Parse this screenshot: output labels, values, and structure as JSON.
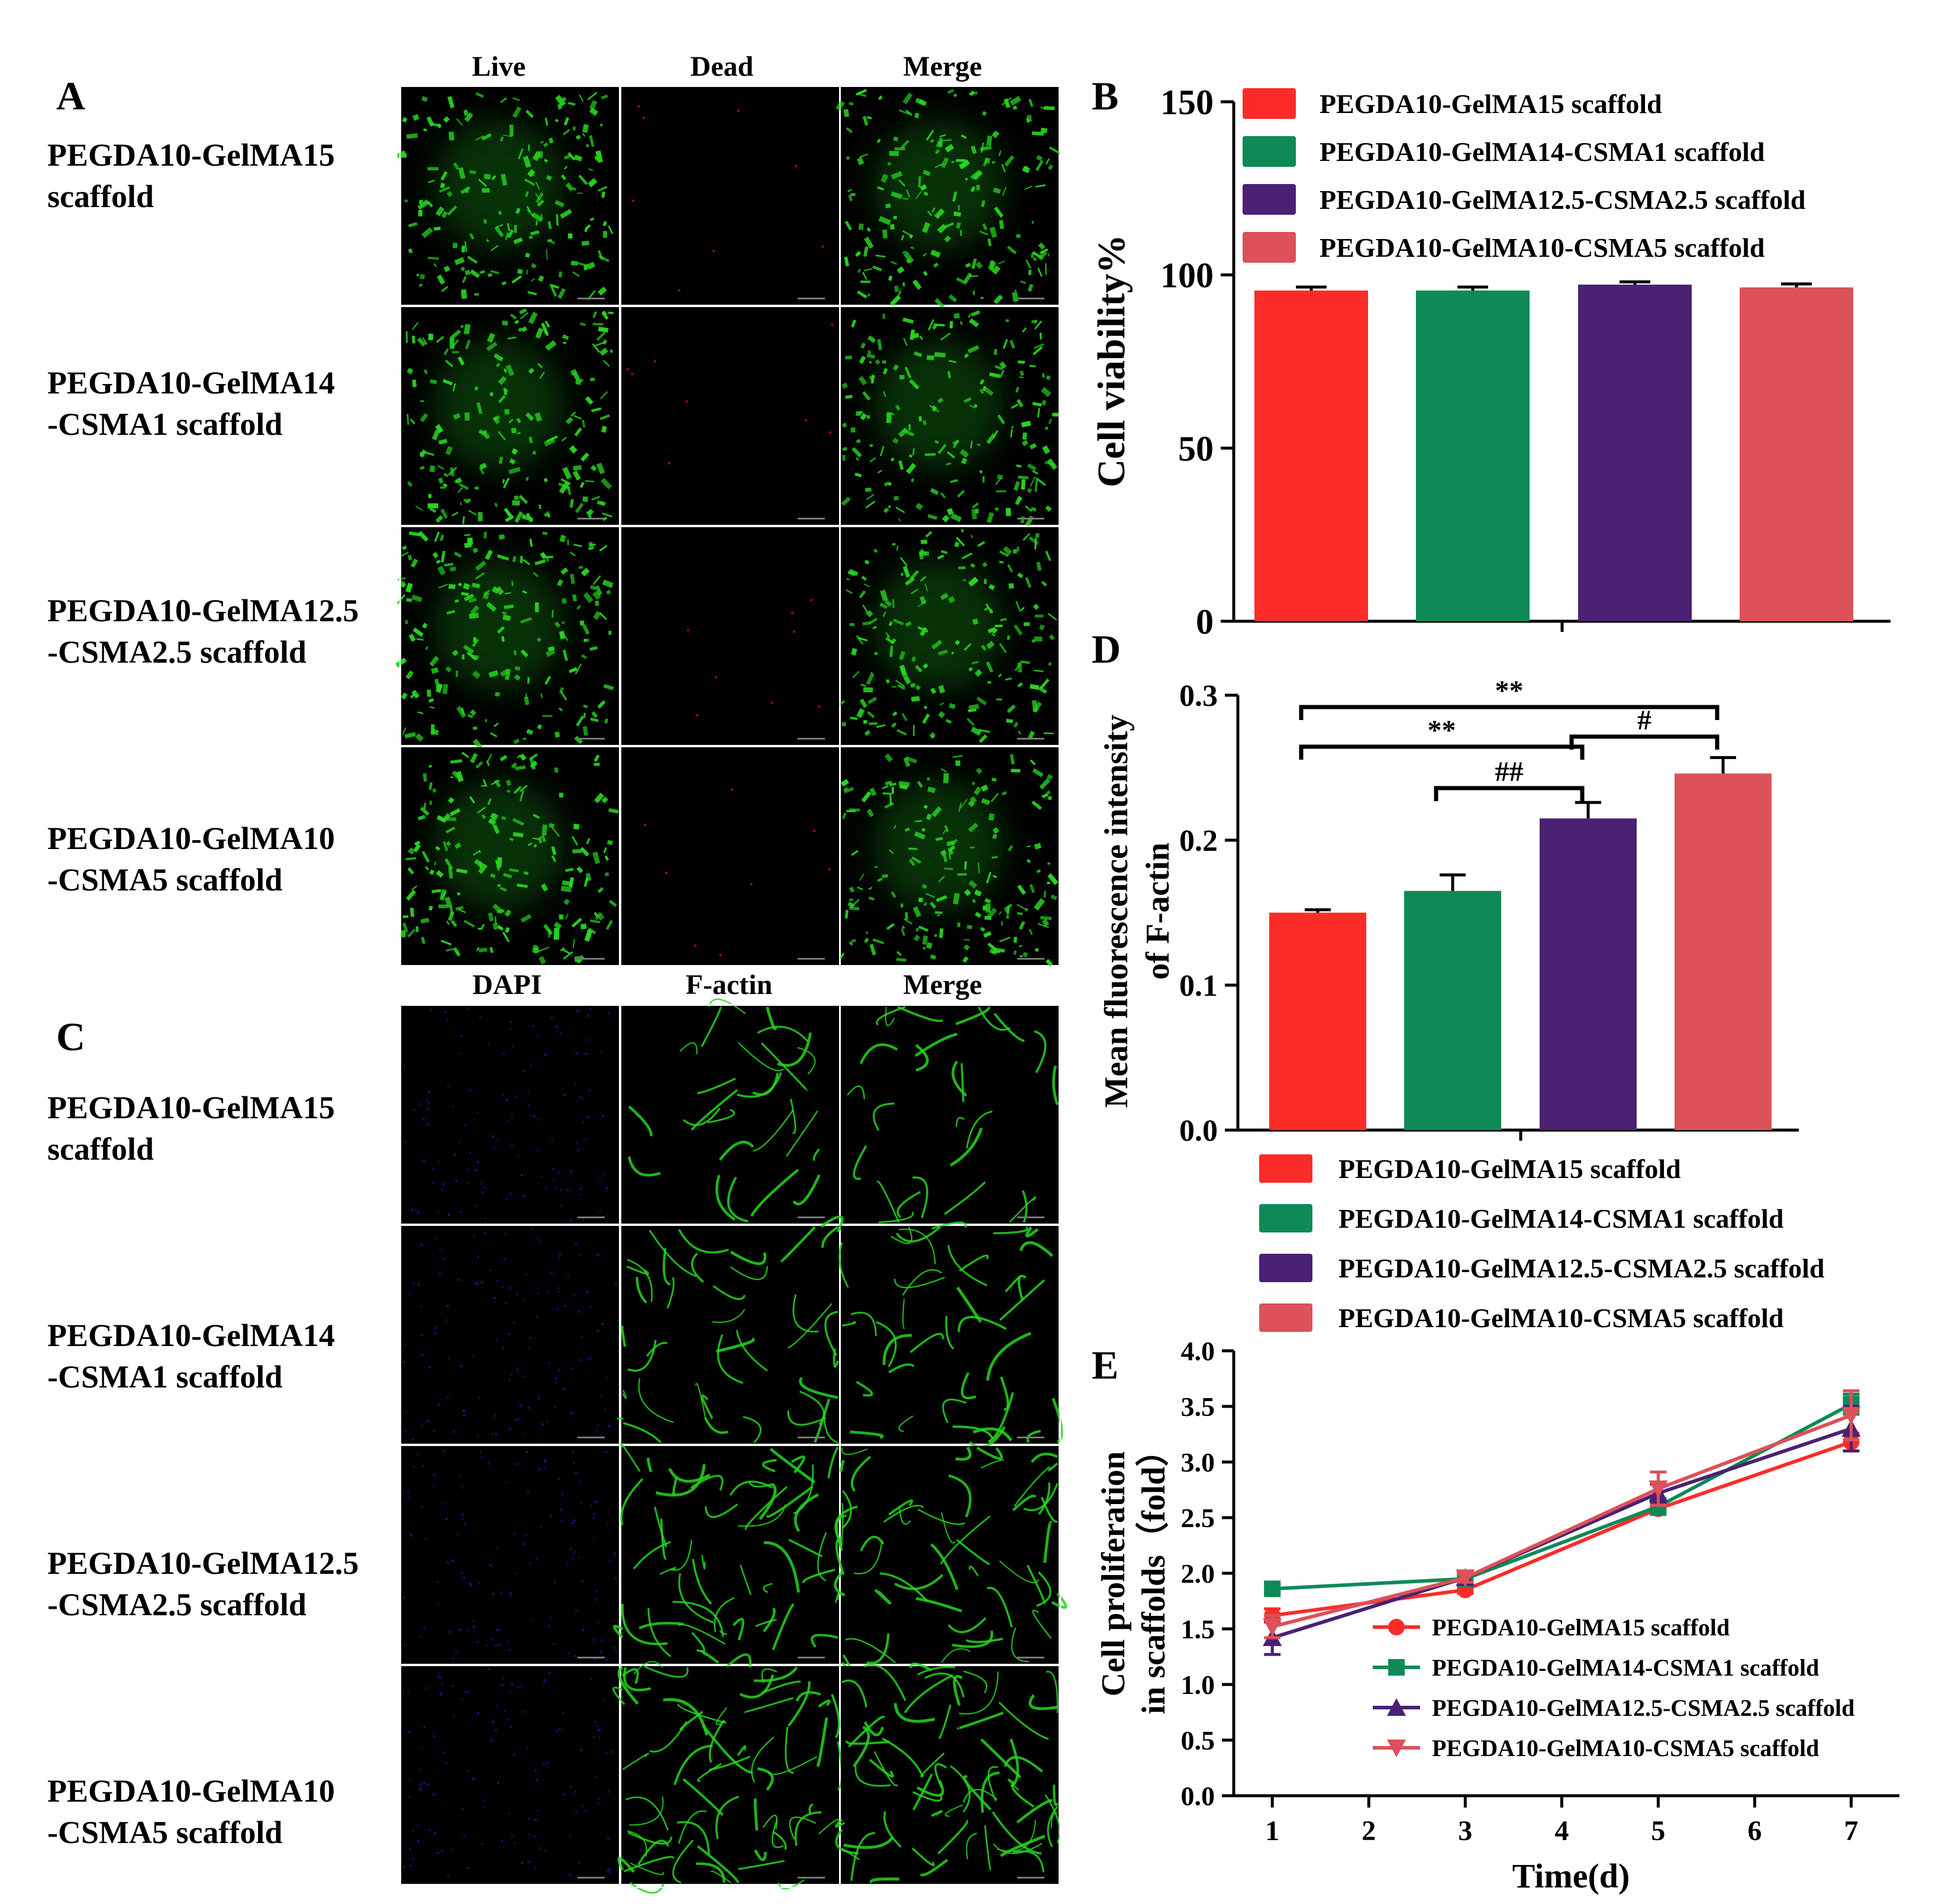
{
  "panel_letters": {
    "A": "A",
    "B": "B",
    "C": "C",
    "D": "D",
    "E": "E"
  },
  "colors": {
    "s15": "#fb2c28",
    "s14": "#0d8a56",
    "s12": "#4a2173",
    "s10": "#dc515a",
    "micro_bg": "#000000",
    "green_channel": "#26d61e",
    "red_channel": "#d01010",
    "blue_channel": "#1a1a9a"
  },
  "panel_a": {
    "columns": [
      "Live",
      "Dead",
      "Merge"
    ],
    "rows": [
      [
        "PEGDA10-GelMA15",
        "scaffold"
      ],
      [
        "PEGDA10-GelMA14",
        "-CSMA1 scaffold"
      ],
      [
        "PEGDA10-GelMA12.5",
        "-CSMA2.5 scaffold"
      ],
      [
        "PEGDA10-GelMA10",
        "-CSMA5 scaffold"
      ]
    ],
    "channel_colors": [
      "green",
      "red",
      "green"
    ]
  },
  "panel_c": {
    "columns": [
      "DAPI",
      "F-actin",
      "Merge"
    ],
    "rows": [
      [
        "PEGDA10-GelMA15",
        "scaffold"
      ],
      [
        "PEGDA10-GelMA14",
        "-CSMA1 scaffold"
      ],
      [
        "PEGDA10-GelMA12.5",
        "-CSMA2.5 scaffold"
      ],
      [
        "PEGDA10-GelMA10",
        "-CSMA5 scaffold"
      ]
    ],
    "channel_colors": [
      "blue",
      "green",
      "green"
    ]
  },
  "chart_data": [
    {
      "panel": "B",
      "type": "bar",
      "ylabel": "Cell viability%",
      "xlabel": "",
      "ylim": [
        0,
        150
      ],
      "yticks": [
        "0",
        "50",
        "100",
        "150"
      ],
      "categories": [
        "PEGDA10-GelMA15 scaffold",
        "PEGDA10-GelMA14-CSMA1 scaffold",
        "PEGDA10-GelMA12.5-CSMA2.5 scaffold",
        "PEGDA10-GelMA10-CSMA5 scaffold"
      ],
      "values": [
        95.5,
        95.5,
        97.2,
        96.4
      ],
      "errors": [
        1.0,
        1.0,
        0.8,
        1.0
      ],
      "legend": [
        "PEGDA10-GelMA15 scaffold",
        "PEGDA10-GelMA14-CSMA1 scaffold",
        "PEGDA10-GelMA12.5-CSMA2.5 scaffold",
        "PEGDA10-GelMA10-CSMA5 scaffold"
      ],
      "legend_position": "top"
    },
    {
      "panel": "D",
      "type": "bar",
      "ylabel": [
        "Mean fluorescence intensity",
        "of F-actin"
      ],
      "xlabel": "",
      "ylim": [
        0,
        0.3
      ],
      "yticks": [
        "0.0",
        "0.1",
        "0.2",
        "0.3"
      ],
      "categories": [
        "PEGDA10-GelMA15 scaffold",
        "PEGDA10-GelMA14-CSMA1 scaffold",
        "PEGDA10-GelMA12.5-CSMA2.5 scaffold",
        "PEGDA10-GelMA10-CSMA5 scaffold"
      ],
      "values": [
        0.15,
        0.165,
        0.215,
        0.246
      ],
      "errors": [
        0.002,
        0.011,
        0.011,
        0.011
      ],
      "significance": [
        {
          "from": 0,
          "to": 3,
          "label": "**"
        },
        {
          "from": 0,
          "to": 2,
          "label": "**"
        },
        {
          "from": 2,
          "to": 3,
          "label": "#"
        },
        {
          "from": 1,
          "to": 2,
          "label": "##"
        }
      ],
      "legend": [
        "PEGDA10-GelMA15 scaffold",
        "PEGDA10-GelMA14-CSMA1 scaffold",
        "PEGDA10-GelMA12.5-CSMA2.5 scaffold",
        "PEGDA10-GelMA10-CSMA5 scaffold"
      ],
      "legend_position": "bottom"
    },
    {
      "panel": "E",
      "type": "line",
      "xlabel": "Time(d)",
      "ylabel": [
        "Cell proliferation",
        "in scaffolds（fold）"
      ],
      "xlim": [
        0.6,
        7.5
      ],
      "ylim": [
        0,
        4.0
      ],
      "xticks": [
        "1",
        "2",
        "3",
        "4",
        "5",
        "6",
        "7"
      ],
      "yticks": [
        "0.0",
        "0.5",
        "1.0",
        "1.5",
        "2.0",
        "2.5",
        "3.0",
        "3.5",
        "4.0"
      ],
      "x": [
        1,
        3,
        5,
        7
      ],
      "series": [
        {
          "name": "PEGDA10-GelMA15 scaffold",
          "marker": "circle",
          "values": [
            1.62,
            1.85,
            2.58,
            3.18
          ],
          "errors": [
            0.06,
            0.03,
            0.05,
            0.08
          ]
        },
        {
          "name": "PEGDA10-GelMA14-CSMA1 scaffold",
          "marker": "square",
          "values": [
            1.86,
            1.95,
            2.6,
            3.52
          ],
          "errors": [
            0.04,
            0.04,
            0.07,
            0.09
          ]
        },
        {
          "name": "PEGDA10-GelMA12.5-CSMA2.5 scaffold",
          "marker": "triangle-up",
          "values": [
            1.42,
            1.96,
            2.72,
            3.3
          ],
          "errors": [
            0.15,
            0.04,
            0.08,
            0.2
          ]
        },
        {
          "name": "PEGDA10-GelMA10-CSMA5 scaffold",
          "marker": "triangle-down",
          "values": [
            1.52,
            1.96,
            2.76,
            3.42
          ],
          "errors": [
            0.1,
            0.04,
            0.15,
            0.22
          ]
        }
      ],
      "legend_position": "lower-right"
    }
  ]
}
